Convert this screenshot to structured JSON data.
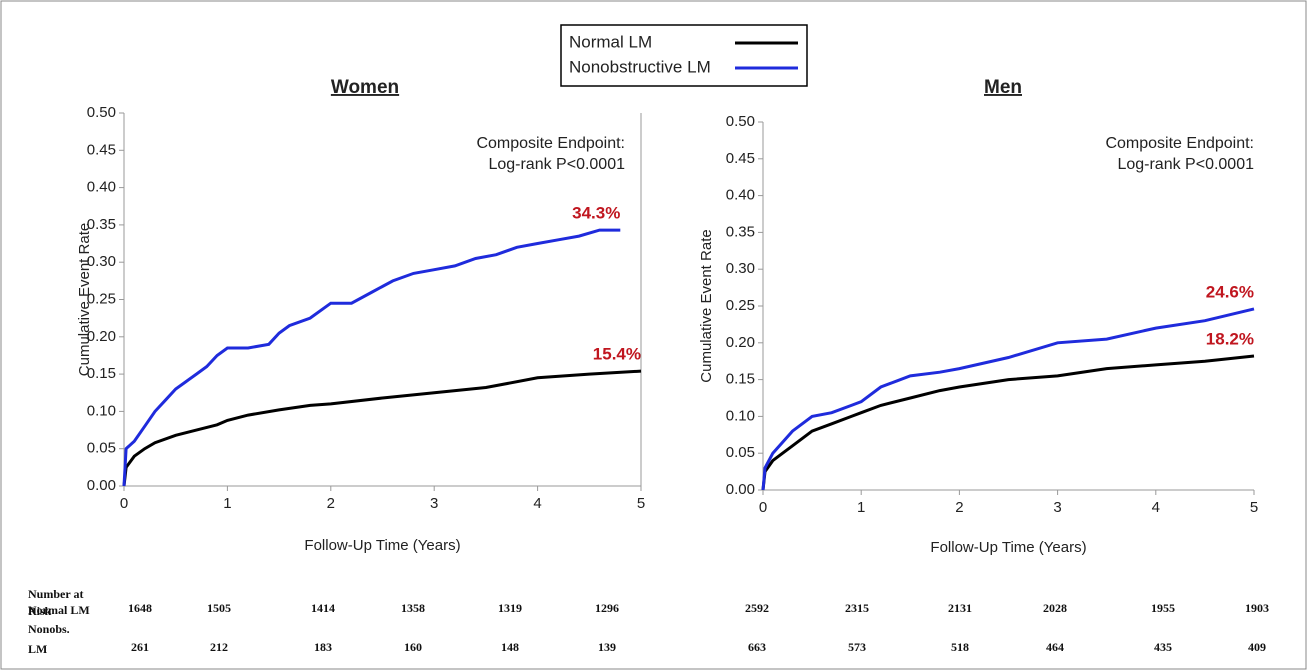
{
  "chart_data": [
    {
      "type": "line",
      "title": "Women",
      "ylabel": "Cumulative Event Rate",
      "xlabel": "Follow-Up Time (Years)",
      "annotation": [
        "Composite Endpoint:",
        "Log-rank P<0.0001"
      ],
      "label_color": "#c0161f",
      "xlim": [
        0,
        5
      ],
      "xticks": [
        0,
        1,
        2,
        3,
        4,
        5
      ],
      "ylim": [
        0,
        0.5
      ],
      "yticks": [
        {
          "value": 0,
          "label": "0.00"
        },
        0.05,
        {
          "value": 0.1,
          "label": "0.10"
        },
        0.15,
        {
          "value": 0.2,
          "label": "0.20"
        },
        0.25,
        {
          "value": 0.3,
          "label": "0.30"
        },
        0.35,
        {
          "value": 0.4,
          "label": "0.40"
        },
        0.45,
        {
          "value": 0.5,
          "label": "0.50"
        }
      ],
      "series": [
        {
          "name": "Normal LM",
          "color": "#000000",
          "x": [
            0,
            0.02,
            0.1,
            0.2,
            0.3,
            0.5,
            0.7,
            0.9,
            1.0,
            1.2,
            1.5,
            1.8,
            2.0,
            2.5,
            3.0,
            3.5,
            4.0,
            4.5,
            5.0
          ],
          "values": [
            0,
            0.025,
            0.04,
            0.05,
            0.058,
            0.068,
            0.075,
            0.082,
            0.088,
            0.095,
            0.102,
            0.108,
            0.11,
            0.118,
            0.125,
            0.132,
            0.145,
            0.15,
            0.154
          ],
          "end_label": {
            "value": 0.154,
            "label": "15.4%"
          }
        },
        {
          "name": "Nonobstructive LM",
          "color": "#1f2bdc",
          "x": [
            0,
            0.02,
            0.1,
            0.2,
            0.3,
            0.4,
            0.5,
            0.6,
            0.7,
            0.8,
            0.9,
            1.0,
            1.2,
            1.4,
            1.5,
            1.6,
            1.8,
            2.0,
            2.2,
            2.4,
            2.6,
            2.8,
            3.0,
            3.2,
            3.4,
            3.6,
            3.8,
            4.0,
            4.2,
            4.4,
            4.6,
            4.8
          ],
          "values": [
            0,
            0.05,
            0.06,
            0.08,
            0.1,
            0.115,
            0.13,
            0.14,
            0.15,
            0.16,
            0.175,
            0.185,
            0.185,
            0.19,
            0.205,
            0.215,
            0.225,
            0.245,
            0.245,
            0.26,
            0.275,
            0.285,
            0.29,
            0.295,
            0.305,
            0.31,
            0.32,
            0.325,
            0.33,
            0.335,
            0.343,
            0.343
          ],
          "end_label": {
            "value": 0.343,
            "label": "34.3%"
          }
        }
      ]
    },
    {
      "type": "line",
      "title": "Men",
      "ylabel": "Cumulative Event Rate",
      "xlabel": "Follow-Up Time (Years)",
      "annotation": [
        "Composite Endpoint:",
        "Log-rank P<0.0001"
      ],
      "label_color": "#c0161f",
      "xlim": [
        0,
        5
      ],
      "xticks": [
        0,
        1,
        2,
        3,
        4,
        5
      ],
      "ylim": [
        0,
        0.5
      ],
      "yticks": [
        {
          "value": 0,
          "label": "0.00"
        },
        0.05,
        {
          "value": 0.1,
          "label": "0.10"
        },
        0.15,
        {
          "value": 0.2,
          "label": "0.20"
        },
        0.25,
        {
          "value": 0.3,
          "label": "0.30"
        },
        0.35,
        {
          "value": 0.4,
          "label": "0.40"
        },
        0.45,
        {
          "value": 0.5,
          "label": "0.50"
        }
      ],
      "series": [
        {
          "color": "#000000",
          "x": [
            0,
            0.02,
            0.1,
            0.2,
            0.3,
            0.5,
            0.7,
            0.9,
            1.0,
            1.2,
            1.5,
            1.8,
            2.0,
            2.5,
            3.0,
            3.5,
            4.0,
            4.5,
            5.0
          ],
          "values": [
            0,
            0.025,
            0.04,
            0.05,
            0.06,
            0.08,
            0.09,
            0.1,
            0.105,
            0.115,
            0.125,
            0.135,
            0.14,
            0.15,
            0.155,
            0.165,
            0.17,
            0.175,
            0.182
          ],
          "end_label": {
            "value": 0.182,
            "label": "18.2%"
          }
        },
        {
          "color": "#1f2bdc",
          "x": [
            0,
            0.02,
            0.1,
            0.2,
            0.3,
            0.5,
            0.7,
            0.9,
            1.0,
            1.2,
            1.5,
            1.8,
            2.0,
            2.5,
            3.0,
            3.5,
            4.0,
            4.5,
            5.0
          ],
          "values": [
            0,
            0.03,
            0.05,
            0.065,
            0.08,
            0.1,
            0.105,
            0.115,
            0.12,
            0.14,
            0.155,
            0.16,
            0.165,
            0.18,
            0.2,
            0.205,
            0.22,
            0.23,
            0.246
          ],
          "end_label": {
            "value": 0.246,
            "label": "24.6%"
          }
        }
      ]
    }
  ],
  "risk_table": {
    "title": "Number at Risk",
    "rows": [
      {
        "label": "Normal LM",
        "values": [
          "1648",
          "1505",
          "1414",
          "1358",
          "1319",
          "1296",
          "2592",
          "2315",
          "2131",
          "2028",
          "1955",
          "1903"
        ]
      },
      {
        "label": "Nonobs. LM",
        "values": [
          "261",
          "212",
          "183",
          "160",
          "148",
          "139",
          "663",
          "573",
          "518",
          "464",
          "435",
          "409"
        ]
      }
    ]
  }
}
